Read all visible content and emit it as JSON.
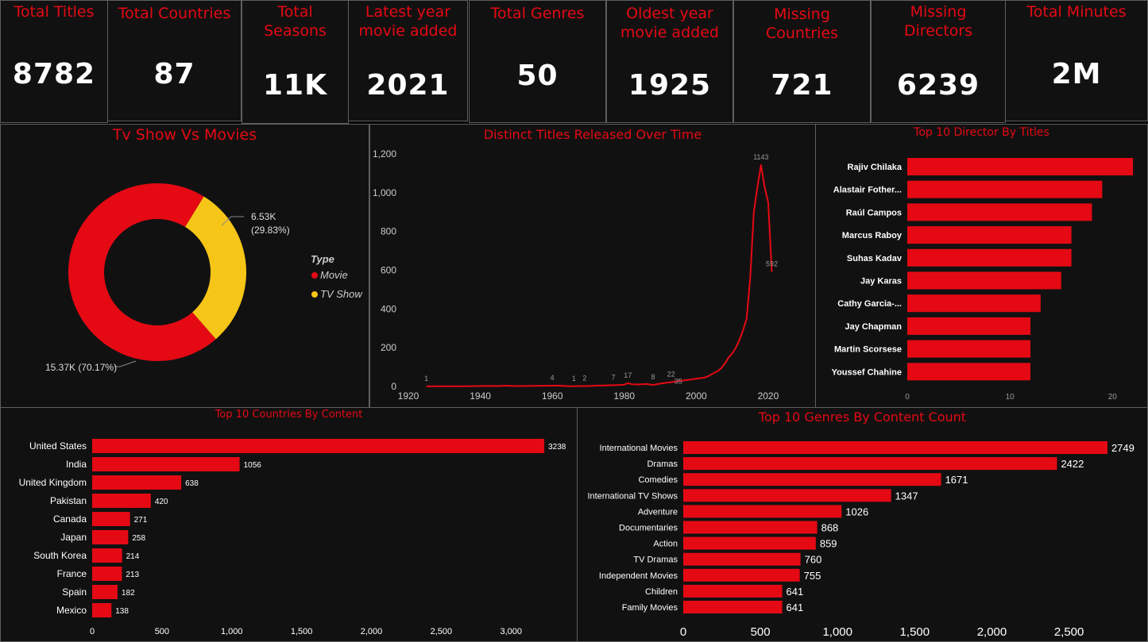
{
  "colors": {
    "accent": "#e50914",
    "secondary": "#f5c518",
    "background": "#121111",
    "border": "#5f5f5f"
  },
  "kpis": [
    {
      "title": "Total Titles",
      "value": "8782"
    },
    {
      "title": "Total Countries",
      "value": "87"
    },
    {
      "title": "Total\nSeasons",
      "value": "11K"
    },
    {
      "title": "Latest year\nmovie added",
      "value": "2021"
    },
    {
      "title": "Total Genres",
      "value": "50"
    },
    {
      "title": "Oldest year\nmovie added",
      "value": "1925"
    },
    {
      "title": "Missing\nCountries",
      "value": "721"
    },
    {
      "title": "Missing\nDirectors",
      "value": "6239"
    },
    {
      "title": "Total Minutes",
      "value": "2M"
    }
  ],
  "panels": {
    "donut_title": "Tv Show Vs Movies",
    "line_title": "Distinct Titles Released Over Time",
    "directors_title": "Top 10 Director By Titles",
    "countries_title": "Top 10 Countries By Content",
    "genres_title": "Top 10 Genres By Content Count"
  },
  "chart_data": [
    {
      "type": "pie",
      "title": "Tv Show Vs Movies",
      "legend_title": "Type",
      "legend_position": "right",
      "slices": [
        {
          "name": "Movie",
          "value": 15370,
          "label": "15.37K (70.17%)",
          "color": "#e50914"
        },
        {
          "name": "TV Show",
          "value": 6530,
          "label": "6.53K (29.83%)",
          "color": "#f5c518"
        }
      ]
    },
    {
      "type": "line",
      "title": "Distinct Titles Released Over Time",
      "xlim": [
        1920,
        2022
      ],
      "ylim": [
        0,
        1200
      ],
      "xticks": [
        1920,
        1940,
        1960,
        1980,
        2000,
        2020
      ],
      "yticks": [
        0,
        200,
        400,
        600,
        800,
        1000,
        1200
      ],
      "ytick_labels": [
        "0",
        "200",
        "400",
        "600",
        "800",
        "1,000",
        "1,200"
      ],
      "x": [
        1925,
        1930,
        1935,
        1940,
        1942,
        1945,
        1947,
        1950,
        1955,
        1960,
        1962,
        1965,
        1967,
        1970,
        1972,
        1974,
        1976,
        1978,
        1980,
        1981,
        1982,
        1984,
        1986,
        1988,
        1990,
        1992,
        1993,
        1994,
        1996,
        1998,
        2000,
        2002,
        2003,
        2004,
        2005,
        2006,
        2007,
        2008,
        2009,
        2010,
        2011,
        2012,
        2013,
        2014,
        2015,
        2016,
        2017,
        2018,
        2019,
        2020,
        2021
      ],
      "y": [
        1,
        1,
        1,
        2,
        3,
        2,
        4,
        2,
        3,
        4,
        4,
        1,
        2,
        2,
        4,
        5,
        6,
        7,
        9,
        17,
        12,
        10,
        13,
        8,
        15,
        20,
        22,
        25,
        30,
        35,
        40,
        45,
        50,
        60,
        70,
        80,
        95,
        120,
        150,
        170,
        200,
        240,
        290,
        350,
        560,
        900,
        1030,
        1143,
        1030,
        950,
        592
      ],
      "labels": [
        {
          "x": 1925,
          "y": 1,
          "text": "1"
        },
        {
          "x": 1960,
          "y": 4,
          "text": "4"
        },
        {
          "x": 1966,
          "y": 1,
          "text": "1"
        },
        {
          "x": 1969,
          "y": 2,
          "text": "2"
        },
        {
          "x": 1977,
          "y": 7,
          "text": "7"
        },
        {
          "x": 1981,
          "y": 17,
          "text": "17"
        },
        {
          "x": 1988,
          "y": 8,
          "text": "8"
        },
        {
          "x": 1993,
          "y": 22,
          "text": "22"
        },
        {
          "x": 1995,
          "y": -14,
          "text": "35"
        },
        {
          "x": 2018,
          "y": 1143,
          "text": "1143"
        },
        {
          "x": 2021,
          "y": 592,
          "text": "592"
        }
      ]
    },
    {
      "type": "bar",
      "title": "Top 10 Director By Titles",
      "categories": [
        "Rajiv Chilaka",
        "Alastair Fother...",
        "Raúl Campos",
        "Marcus Raboy",
        "Suhas Kadav",
        "Jay Karas",
        "Cathy Garcia-...",
        "Jay Chapman",
        "Martin Scorsese",
        "Youssef Chahine"
      ],
      "values": [
        22,
        19,
        18,
        16,
        16,
        15,
        13,
        12,
        12,
        12
      ],
      "xlim": [
        0,
        23
      ],
      "xticks": [
        0,
        10,
        20
      ]
    },
    {
      "type": "bar",
      "title": "Top 10 Countries By Content",
      "categories": [
        "United States",
        "India",
        "United Kingdom",
        "Pakistan",
        "Canada",
        "Japan",
        "South Korea",
        "France",
        "Spain",
        "Mexico"
      ],
      "values": [
        3238,
        1056,
        638,
        420,
        271,
        258,
        214,
        213,
        182,
        138
      ],
      "xlim": [
        0,
        3300
      ],
      "xticks": [
        0,
        500,
        1000,
        1500,
        2000,
        2500,
        3000
      ],
      "xtick_labels": [
        "0",
        "500",
        "1,000",
        "1,500",
        "2,000",
        "2,500",
        "3,000"
      ]
    },
    {
      "type": "bar",
      "title": "Top 10 Genres By Content Count",
      "categories": [
        "International Movies",
        "Dramas",
        "Comedies",
        "International TV Shows",
        "Adventure",
        "Documentaries",
        "Action",
        "TV Dramas",
        "Independent Movies",
        "Children",
        "Family Movies"
      ],
      "values": [
        2749,
        2422,
        1671,
        1347,
        1026,
        868,
        859,
        760,
        755,
        641,
        641
      ],
      "xlim": [
        0,
        2950
      ],
      "xticks": [
        0,
        500,
        1000,
        1500,
        2000,
        2500
      ],
      "xtick_labels": [
        "0",
        "500",
        "1,000",
        "1,500",
        "2,000",
        "2,500"
      ]
    }
  ]
}
